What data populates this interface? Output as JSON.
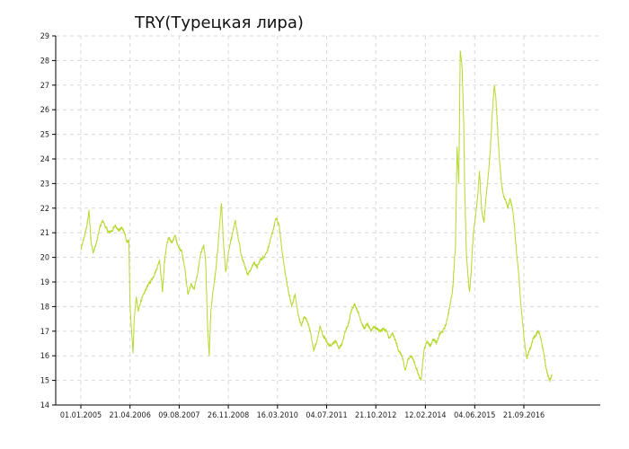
{
  "chart_data": {
    "type": "line",
    "title": "TRY(Турецкая лира)",
    "xlabel": "",
    "ylabel": "",
    "ylim": [
      14,
      29
    ],
    "yticks": [
      "14",
      "15",
      "16",
      "17",
      "18",
      "19",
      "20",
      "21",
      "22",
      "23",
      "24",
      "25",
      "26",
      "27",
      "28",
      "29"
    ],
    "xticks": [
      "01.01.2005",
      "21.04.2006",
      "09.08.2007",
      "26.11.2008",
      "16.03.2010",
      "04.07.2011",
      "21.10.2012",
      "12.02.2014",
      "04.06.2015",
      "21.09.2016"
    ],
    "grid": true,
    "line_color": "#b5d92f",
    "series": [
      {
        "x": [
          "01.01.2005",
          "21.04.2006",
          "09.08.2007",
          "26.11.2008",
          "16.03.2010",
          "04.07.2011",
          "21.10.2012",
          "12.02.2014",
          "04.06.2015",
          "21.09.2016"
        ],
        "values_note": "",
        "points": [
          [
            "2005-01-01",
            20.3
          ],
          [
            "2005-02-01",
            20.8
          ],
          [
            "2005-03-01",
            21.3
          ],
          [
            "2005-03-20",
            21.9
          ],
          [
            "2005-04-10",
            20.6
          ],
          [
            "2005-05-01",
            20.2
          ],
          [
            "2005-06-01",
            20.6
          ],
          [
            "2005-07-01",
            21.2
          ],
          [
            "2005-08-01",
            21.5
          ],
          [
            "2005-09-01",
            21.2
          ],
          [
            "2005-10-01",
            21.0
          ],
          [
            "2005-11-01",
            21.1
          ],
          [
            "2005-12-01",
            21.3
          ],
          [
            "2006-01-01",
            21.1
          ],
          [
            "2006-02-01",
            21.2
          ],
          [
            "2006-03-01",
            21.0
          ],
          [
            "2006-03-20",
            20.6
          ],
          [
            "2006-04-10",
            20.7
          ],
          [
            "2006-04-20",
            18.2
          ],
          [
            "2006-05-01",
            17.3
          ],
          [
            "2006-05-20",
            16.1
          ],
          [
            "2006-06-01",
            17.5
          ],
          [
            "2006-06-20",
            18.4
          ],
          [
            "2006-07-10",
            17.8
          ],
          [
            "2006-08-01",
            18.2
          ],
          [
            "2006-09-01",
            18.5
          ],
          [
            "2006-10-01",
            18.8
          ],
          [
            "2006-11-01",
            19.0
          ],
          [
            "2006-12-01",
            19.2
          ],
          [
            "2007-01-01",
            19.5
          ],
          [
            "2007-02-01",
            19.9
          ],
          [
            "2007-03-01",
            18.6
          ],
          [
            "2007-03-20",
            19.8
          ],
          [
            "2007-04-10",
            20.5
          ],
          [
            "2007-05-01",
            20.8
          ],
          [
            "2007-06-01",
            20.6
          ],
          [
            "2007-07-01",
            20.9
          ],
          [
            "2007-08-01",
            20.4
          ],
          [
            "2007-09-01",
            20.3
          ],
          [
            "2007-10-01",
            19.6
          ],
          [
            "2007-11-01",
            18.5
          ],
          [
            "2007-12-01",
            18.9
          ],
          [
            "2008-01-01",
            18.7
          ],
          [
            "2008-02-01",
            19.3
          ],
          [
            "2008-03-01",
            20.1
          ],
          [
            "2008-04-01",
            20.5
          ],
          [
            "2008-04-20",
            19.9
          ],
          [
            "2008-05-10",
            17.1
          ],
          [
            "2008-05-25",
            16.0
          ],
          [
            "2008-06-10",
            17.8
          ],
          [
            "2008-07-01",
            18.6
          ],
          [
            "2008-08-01",
            19.6
          ],
          [
            "2008-09-01",
            21.2
          ],
          [
            "2008-09-20",
            22.2
          ],
          [
            "2008-10-10",
            20.6
          ],
          [
            "2008-11-01",
            19.4
          ],
          [
            "2008-12-01",
            20.3
          ],
          [
            "2009-01-01",
            20.9
          ],
          [
            "2009-02-01",
            21.5
          ],
          [
            "2009-03-01",
            20.8
          ],
          [
            "2009-04-01",
            20.1
          ],
          [
            "2009-05-01",
            19.7
          ],
          [
            "2009-06-01",
            19.3
          ],
          [
            "2009-07-01",
            19.5
          ],
          [
            "2009-08-01",
            19.8
          ],
          [
            "2009-09-01",
            19.6
          ],
          [
            "2009-10-01",
            19.9
          ],
          [
            "2009-11-01",
            20.0
          ],
          [
            "2009-12-01",
            20.2
          ],
          [
            "2010-01-01",
            20.6
          ],
          [
            "2010-02-01",
            21.1
          ],
          [
            "2010-03-01",
            21.6
          ],
          [
            "2010-04-01",
            21.3
          ],
          [
            "2010-05-01",
            20.2
          ],
          [
            "2010-06-01",
            19.3
          ],
          [
            "2010-07-01",
            18.6
          ],
          [
            "2010-08-01",
            18.0
          ],
          [
            "2010-09-01",
            18.5
          ],
          [
            "2010-10-01",
            17.7
          ],
          [
            "2010-11-01",
            17.2
          ],
          [
            "2010-12-01",
            17.6
          ],
          [
            "2011-01-01",
            17.4
          ],
          [
            "2011-02-01",
            16.9
          ],
          [
            "2011-03-01",
            16.2
          ],
          [
            "2011-04-01",
            16.6
          ],
          [
            "2011-05-01",
            17.2
          ],
          [
            "2011-06-01",
            16.8
          ],
          [
            "2011-07-01",
            16.6
          ],
          [
            "2011-08-01",
            16.4
          ],
          [
            "2011-09-01",
            16.5
          ],
          [
            "2011-10-01",
            16.6
          ],
          [
            "2011-11-01",
            16.3
          ],
          [
            "2011-12-01",
            16.5
          ],
          [
            "2012-01-01",
            17.0
          ],
          [
            "2012-02-01",
            17.3
          ],
          [
            "2012-03-01",
            17.9
          ],
          [
            "2012-04-01",
            18.1
          ],
          [
            "2012-05-01",
            17.8
          ],
          [
            "2012-06-01",
            17.4
          ],
          [
            "2012-07-01",
            17.1
          ],
          [
            "2012-08-01",
            17.3
          ],
          [
            "2012-09-01",
            17.0
          ],
          [
            "2012-10-01",
            17.2
          ],
          [
            "2012-11-01",
            17.1
          ],
          [
            "2012-12-01",
            17.0
          ],
          [
            "2013-01-01",
            17.1
          ],
          [
            "2013-02-01",
            17.0
          ],
          [
            "2013-03-01",
            16.7
          ],
          [
            "2013-04-01",
            16.9
          ],
          [
            "2013-05-01",
            16.6
          ],
          [
            "2013-06-01",
            16.2
          ],
          [
            "2013-07-01",
            16.0
          ],
          [
            "2013-08-01",
            15.4
          ],
          [
            "2013-09-01",
            15.9
          ],
          [
            "2013-10-01",
            16.0
          ],
          [
            "2013-11-01",
            15.7
          ],
          [
            "2013-12-01",
            15.3
          ],
          [
            "2014-01-01",
            15.0
          ],
          [
            "2014-02-01",
            16.3
          ],
          [
            "2014-03-01",
            16.6
          ],
          [
            "2014-04-01",
            16.4
          ],
          [
            "2014-05-01",
            16.7
          ],
          [
            "2014-06-01",
            16.5
          ],
          [
            "2014-07-01",
            16.9
          ],
          [
            "2014-08-01",
            17.0
          ],
          [
            "2014-09-01",
            17.3
          ],
          [
            "2014-10-01",
            17.9
          ],
          [
            "2014-11-01",
            18.6
          ],
          [
            "2014-12-01",
            20.6
          ],
          [
            "2014-12-15",
            24.5
          ],
          [
            "2015-01-01",
            23.0
          ],
          [
            "2015-01-15",
            28.4
          ],
          [
            "2015-02-01",
            27.8
          ],
          [
            "2015-02-15",
            26.0
          ],
          [
            "2015-03-01",
            22.5
          ],
          [
            "2015-03-15",
            20.2
          ],
          [
            "2015-04-01",
            19.2
          ],
          [
            "2015-04-15",
            18.6
          ],
          [
            "2015-05-01",
            19.4
          ],
          [
            "2015-05-20",
            20.9
          ],
          [
            "2015-06-10",
            21.6
          ],
          [
            "2015-07-01",
            22.4
          ],
          [
            "2015-07-20",
            23.5
          ],
          [
            "2015-08-10",
            21.9
          ],
          [
            "2015-09-01",
            21.4
          ],
          [
            "2015-09-20",
            22.4
          ],
          [
            "2015-10-10",
            23.2
          ],
          [
            "2015-11-01",
            24.3
          ],
          [
            "2015-11-20",
            25.8
          ],
          [
            "2015-12-10",
            27.0
          ],
          [
            "2015-12-25",
            26.5
          ],
          [
            "2016-01-15",
            24.9
          ],
          [
            "2016-02-01",
            23.8
          ],
          [
            "2016-02-20",
            22.9
          ],
          [
            "2016-03-10",
            22.5
          ],
          [
            "2016-04-01",
            22.3
          ],
          [
            "2016-04-20",
            22.0
          ],
          [
            "2016-05-10",
            22.4
          ],
          [
            "2016-06-01",
            22.0
          ],
          [
            "2016-06-20",
            21.4
          ],
          [
            "2016-07-10",
            20.3
          ],
          [
            "2016-08-01",
            19.4
          ],
          [
            "2016-08-20",
            18.2
          ],
          [
            "2016-09-10",
            17.3
          ],
          [
            "2016-10-01",
            16.4
          ],
          [
            "2016-10-20",
            15.9
          ],
          [
            "2016-11-10",
            16.2
          ],
          [
            "2016-12-01",
            16.4
          ],
          [
            "2016-12-20",
            16.7
          ],
          [
            "2017-01-10",
            16.8
          ],
          [
            "2017-02-01",
            17.0
          ],
          [
            "2017-02-20",
            16.9
          ],
          [
            "2017-03-10",
            16.6
          ],
          [
            "2017-04-01",
            16.1
          ],
          [
            "2017-04-20",
            15.6
          ],
          [
            "2017-05-10",
            15.2
          ],
          [
            "2017-06-01",
            15.0
          ],
          [
            "2017-06-20",
            15.2
          ]
        ]
      }
    ]
  }
}
